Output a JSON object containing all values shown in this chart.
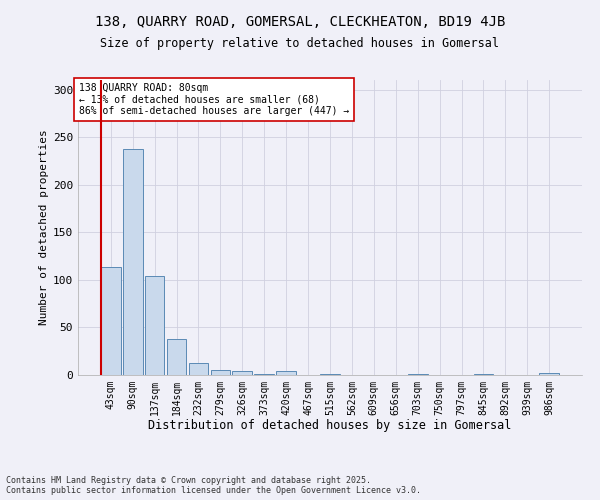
{
  "title_line1": "138, QUARRY ROAD, GOMERSAL, CLECKHEATON, BD19 4JB",
  "title_line2": "Size of property relative to detached houses in Gomersal",
  "xlabel": "Distribution of detached houses by size in Gomersal",
  "ylabel": "Number of detached properties",
  "categories": [
    "43sqm",
    "90sqm",
    "137sqm",
    "184sqm",
    "232sqm",
    "279sqm",
    "326sqm",
    "373sqm",
    "420sqm",
    "467sqm",
    "515sqm",
    "562sqm",
    "609sqm",
    "656sqm",
    "703sqm",
    "750sqm",
    "797sqm",
    "845sqm",
    "892sqm",
    "939sqm",
    "986sqm"
  ],
  "values": [
    114,
    238,
    104,
    38,
    13,
    5,
    4,
    1,
    4,
    0,
    1,
    0,
    0,
    0,
    1,
    0,
    0,
    1,
    0,
    0,
    2
  ],
  "bar_color": "#c9d9ec",
  "bar_edge_color": "#5a8ab5",
  "grid_color": "#d0d0e0",
  "vline_color": "#cc0000",
  "annotation_text": "138 QUARRY ROAD: 80sqm\n← 13% of detached houses are smaller (68)\n86% of semi-detached houses are larger (447) →",
  "annotation_box_color": "#ffffff",
  "annotation_box_edge": "#cc0000",
  "footnote": "Contains HM Land Registry data © Crown copyright and database right 2025.\nContains public sector information licensed under the Open Government Licence v3.0.",
  "ylim": [
    0,
    310
  ],
  "yticks": [
    0,
    50,
    100,
    150,
    200,
    250,
    300
  ],
  "background_color": "#f0f0f8"
}
